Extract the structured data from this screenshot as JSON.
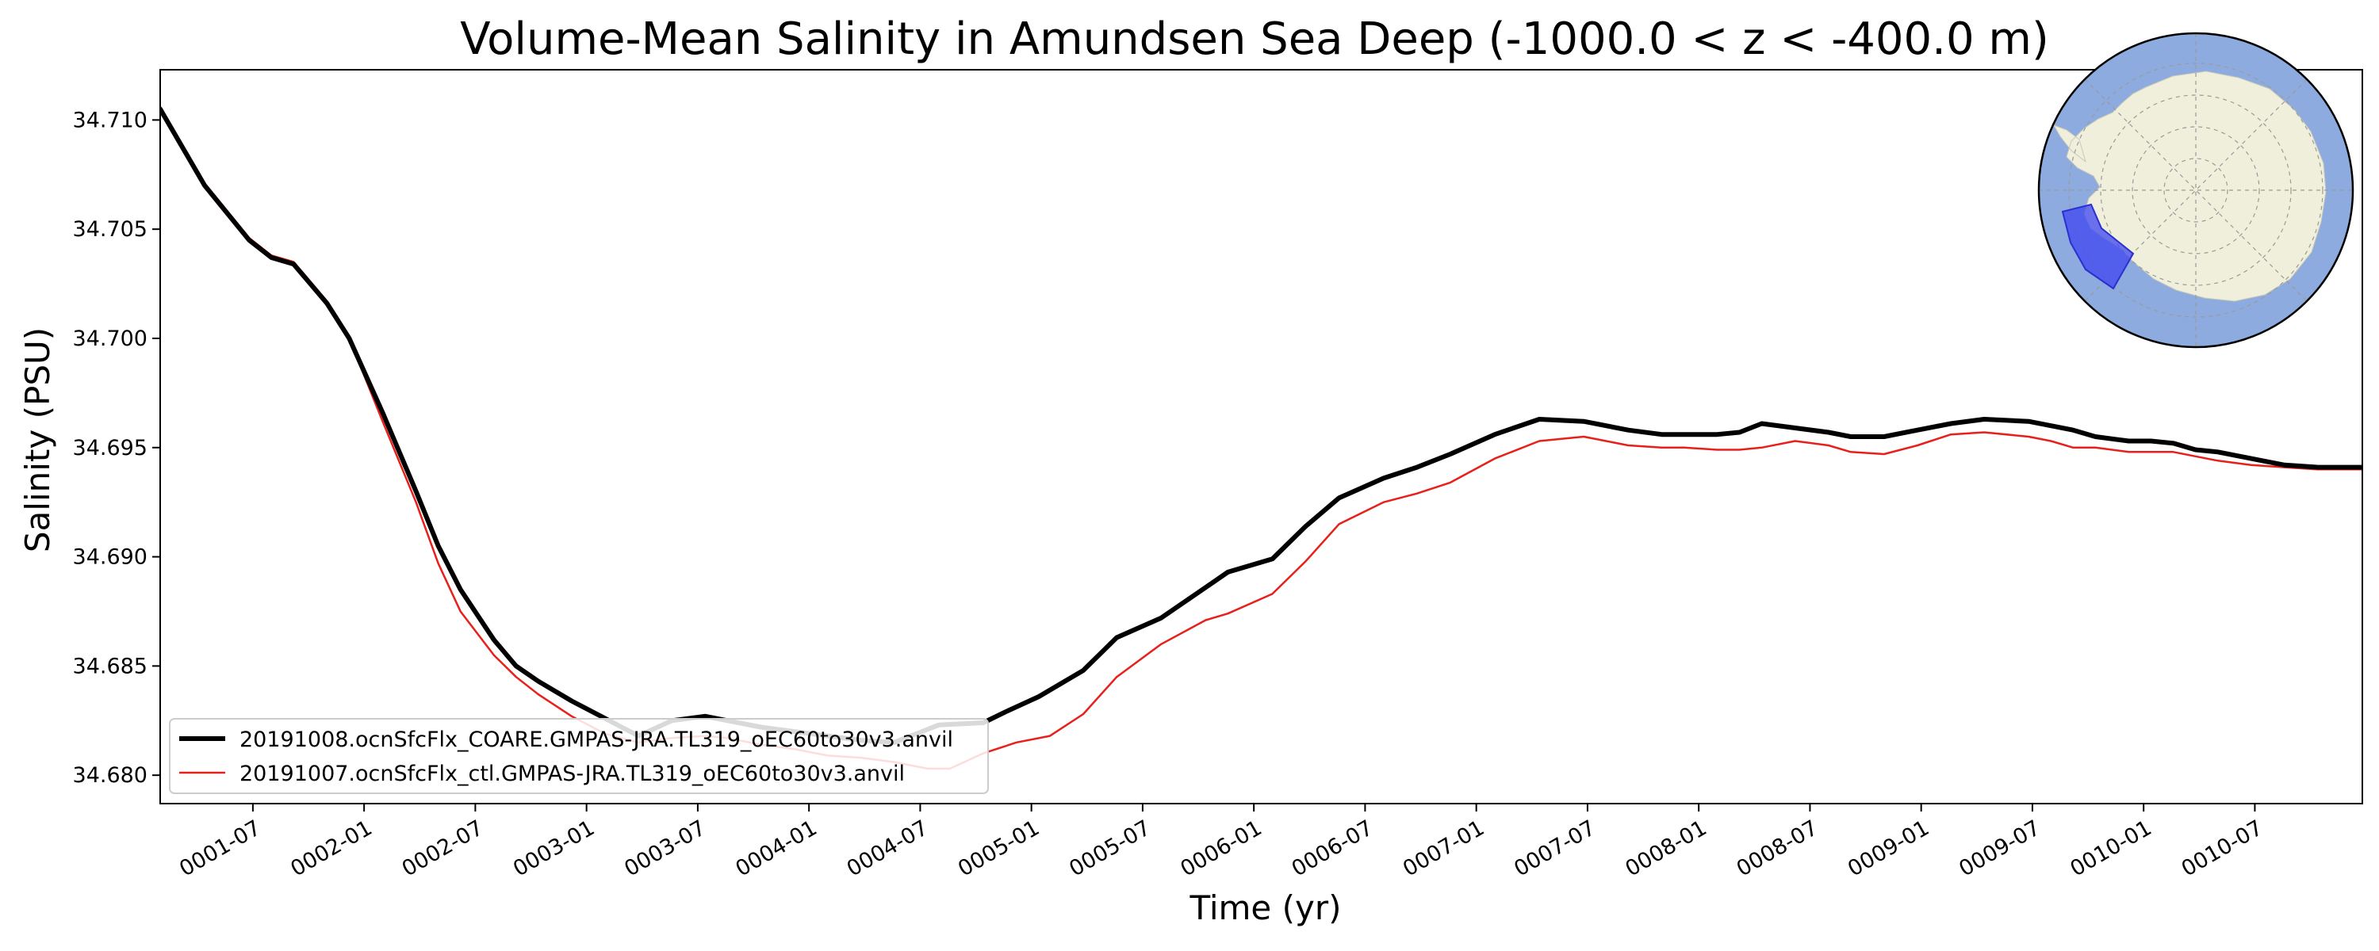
{
  "chart_data": {
    "type": "line",
    "title": "Volume-Mean Salinity in Amundsen Sea Deep (-1000.0 < z < -400.0 m)",
    "xlabel": "Time (yr)",
    "ylabel": "Salinity (PSU)",
    "xlim": [
      0.0,
      9.9
    ],
    "ylim": [
      34.6787,
      34.7123
    ],
    "grid": false,
    "legend_position": "lower-left",
    "x_ticks": [
      {
        "value": 0.4167,
        "label": "0001-07"
      },
      {
        "value": 0.9167,
        "label": "0002-01"
      },
      {
        "value": 1.4167,
        "label": "0002-07"
      },
      {
        "value": 1.9167,
        "label": "0003-01"
      },
      {
        "value": 2.4167,
        "label": "0003-07"
      },
      {
        "value": 2.9167,
        "label": "0004-01"
      },
      {
        "value": 3.4167,
        "label": "0004-07"
      },
      {
        "value": 3.9167,
        "label": "0005-01"
      },
      {
        "value": 4.4167,
        "label": "0005-07"
      },
      {
        "value": 4.9167,
        "label": "0006-01"
      },
      {
        "value": 5.4167,
        "label": "0006-07"
      },
      {
        "value": 5.9167,
        "label": "0007-01"
      },
      {
        "value": 6.4167,
        "label": "0007-07"
      },
      {
        "value": 6.9167,
        "label": "0008-01"
      },
      {
        "value": 7.4167,
        "label": "0008-07"
      },
      {
        "value": 7.9167,
        "label": "0009-01"
      },
      {
        "value": 8.4167,
        "label": "0009-07"
      },
      {
        "value": 8.9167,
        "label": "0010-01"
      },
      {
        "value": 9.4167,
        "label": "0010-07"
      }
    ],
    "y_ticks": [
      {
        "value": 34.68,
        "label": "34.680"
      },
      {
        "value": 34.685,
        "label": "34.685"
      },
      {
        "value": 34.69,
        "label": "34.690"
      },
      {
        "value": 34.695,
        "label": "34.695"
      },
      {
        "value": 34.7,
        "label": "34.700"
      },
      {
        "value": 34.705,
        "label": "34.705"
      },
      {
        "value": 34.71,
        "label": "34.710"
      }
    ],
    "series": [
      {
        "name": "20191008.ocnSfcFlx_COARE.GMPAS-JRA.TL319_oEC60to30v3.anvil",
        "color": "#000000",
        "x": [
          0.0,
          0.2,
          0.4,
          0.5,
          0.6,
          0.75,
          0.85,
          1.0,
          1.15,
          1.25,
          1.35,
          1.5,
          1.6,
          1.7,
          1.85,
          2.0,
          2.15,
          2.3,
          2.45,
          2.55,
          2.7,
          2.85,
          3.0,
          3.15,
          3.3,
          3.5,
          3.7,
          3.8,
          3.95,
          4.15,
          4.3,
          4.5,
          4.7,
          4.8,
          5.0,
          5.15,
          5.3,
          5.5,
          5.65,
          5.8,
          6.0,
          6.2,
          6.4,
          6.5,
          6.6,
          6.75,
          6.85,
          7.0,
          7.1,
          7.2,
          7.35,
          7.5,
          7.6,
          7.75,
          7.9,
          8.05,
          8.2,
          8.4,
          8.5,
          8.6,
          8.7,
          8.85,
          8.95,
          9.05,
          9.15,
          9.25,
          9.4,
          9.55,
          9.7,
          9.9
        ],
        "y": [
          34.7105,
          34.707,
          34.7045,
          34.7037,
          34.7034,
          34.7016,
          34.7,
          34.6966,
          34.693,
          34.6905,
          34.6885,
          34.6862,
          34.685,
          34.6843,
          34.6834,
          34.6826,
          34.6818,
          34.6825,
          34.6827,
          34.6825,
          34.6822,
          34.682,
          34.6818,
          34.6816,
          34.6815,
          34.6823,
          34.6824,
          34.6829,
          34.6836,
          34.6848,
          34.6863,
          34.6872,
          34.6886,
          34.6893,
          34.6899,
          34.6914,
          34.6927,
          34.6936,
          34.6941,
          34.6947,
          34.6956,
          34.6963,
          34.6962,
          34.696,
          34.6958,
          34.6956,
          34.6956,
          34.6956,
          34.6957,
          34.6961,
          34.6959,
          34.6957,
          34.6955,
          34.6955,
          34.6958,
          34.6961,
          34.6963,
          34.6962,
          34.696,
          34.6958,
          34.6955,
          34.6953,
          34.6953,
          34.6952,
          34.6949,
          34.6948,
          34.6945,
          34.6942,
          34.6941,
          34.6941
        ]
      },
      {
        "name": "20191007.ocnSfcFlx_ctl.GMPAS-JRA.TL319_oEC60to30v3.anvil",
        "color": "#e8201b",
        "x": [
          0.0,
          0.2,
          0.4,
          0.5,
          0.6,
          0.75,
          0.85,
          1.0,
          1.15,
          1.25,
          1.35,
          1.5,
          1.6,
          1.7,
          1.85,
          2.0,
          2.15,
          2.3,
          2.45,
          2.55,
          2.7,
          2.85,
          3.0,
          3.15,
          3.3,
          3.45,
          3.55,
          3.7,
          3.85,
          4.0,
          4.15,
          4.3,
          4.5,
          4.7,
          4.8,
          5.0,
          5.15,
          5.3,
          5.5,
          5.65,
          5.8,
          6.0,
          6.2,
          6.4,
          6.5,
          6.6,
          6.75,
          6.85,
          7.0,
          7.1,
          7.2,
          7.35,
          7.5,
          7.6,
          7.75,
          7.9,
          8.05,
          8.2,
          8.4,
          8.5,
          8.6,
          8.7,
          8.85,
          8.95,
          9.05,
          9.15,
          9.25,
          9.4,
          9.55,
          9.7,
          9.9
        ],
        "y": [
          34.7106,
          34.7071,
          34.7046,
          34.7038,
          34.7035,
          34.7017,
          34.7,
          34.6962,
          34.6925,
          34.6897,
          34.6875,
          34.6855,
          34.6845,
          34.6837,
          34.6827,
          34.6819,
          34.6815,
          34.6817,
          34.6818,
          34.6817,
          34.6814,
          34.6812,
          34.6809,
          34.6808,
          34.6806,
          34.6803,
          34.6803,
          34.681,
          34.6815,
          34.6818,
          34.6828,
          34.6845,
          34.686,
          34.6871,
          34.6874,
          34.6883,
          34.6898,
          34.6915,
          34.6925,
          34.6929,
          34.6934,
          34.6945,
          34.6953,
          34.6955,
          34.6953,
          34.6951,
          34.695,
          34.695,
          34.6949,
          34.6949,
          34.695,
          34.6953,
          34.6951,
          34.6948,
          34.6947,
          34.6951,
          34.6956,
          34.6957,
          34.6955,
          34.6953,
          34.695,
          34.695,
          34.6948,
          34.6948,
          34.6948,
          34.6946,
          34.6944,
          34.6942,
          34.6941,
          34.694,
          34.694
        ]
      }
    ]
  },
  "inset_map": {
    "ocean_color": "#8eabdf",
    "land_color": "#efefdc",
    "region_color": "#3d46f0"
  }
}
